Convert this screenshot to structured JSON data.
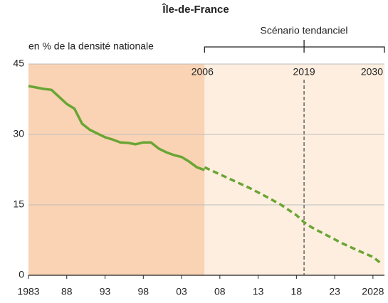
{
  "chart_data": {
    "type": "line",
    "title": "Île-de-France",
    "subtitle": "en % de la densité nationale",
    "scenario_label": "Scénario tendanciel",
    "markers": [
      2006,
      2019,
      2030
    ],
    "series": [
      {
        "color": "#6aa534",
        "dash": false,
        "x": [
          1983,
          1984,
          1985,
          1986,
          1987,
          1988,
          1989,
          1990,
          1991,
          1992,
          1993,
          1994,
          1995,
          1996,
          1997,
          1998,
          1999,
          2000,
          2001,
          2002,
          2003,
          2004,
          2005,
          2006
        ],
        "values": [
          40.3,
          40,
          39.7,
          39.5,
          38,
          36.5,
          35.5,
          32.3,
          31,
          30.2,
          29.4,
          28.9,
          28.3,
          28.2,
          27.9,
          28.3,
          28.3,
          27,
          26.2,
          25.6,
          25.2,
          24.2,
          23,
          22.4
        ]
      },
      {
        "color": "#6aa534",
        "dash": true,
        "x": [
          2006,
          2008,
          2010,
          2012,
          2014,
          2016,
          2018,
          2019,
          2020,
          2022,
          2024,
          2026,
          2028,
          2029
        ],
        "values": [
          23,
          21.5,
          20,
          18.5,
          16.8,
          15,
          12.8,
          11.3,
          10.2,
          8.5,
          6.8,
          5.3,
          3.9,
          2.6
        ]
      }
    ],
    "xlim": [
      1983,
      2029.5
    ],
    "xticks": [
      1983,
      {
        "value": 1988,
        "label": "88"
      },
      {
        "value": 1993,
        "label": "93"
      },
      {
        "value": 1998,
        "label": "98"
      },
      {
        "value": 2003,
        "label": "03"
      },
      {
        "value": 2008,
        "label": "08"
      },
      {
        "value": 2013,
        "label": "13"
      },
      {
        "value": 2018,
        "label": "18"
      },
      {
        "value": 2023,
        "label": "23"
      },
      2028
    ],
    "ylim": [
      0,
      45
    ],
    "yticks": [
      0,
      15,
      30,
      45
    ],
    "grid": true,
    "shade_colors": [
      "#f9d3b4",
      "#fdeedf"
    ]
  }
}
